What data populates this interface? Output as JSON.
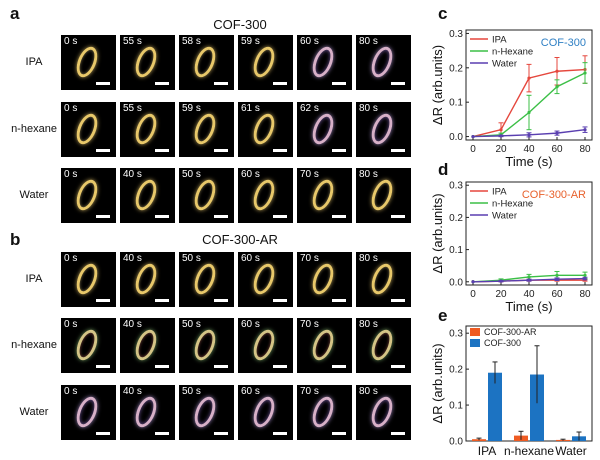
{
  "panels": {
    "a": {
      "letter": "a",
      "title": "COF-300",
      "rows": [
        {
          "label": "IPA",
          "times": [
            "0 s",
            "55 s",
            "58 s",
            "59 s",
            "60 s",
            "80 s"
          ],
          "styles": [
            "y",
            "y",
            "y",
            "y",
            "p",
            "p"
          ]
        },
        {
          "label": "n-hexane",
          "times": [
            "0 s",
            "55 s",
            "59 s",
            "61 s",
            "62 s",
            "80 s"
          ],
          "styles": [
            "y",
            "y",
            "y",
            "y",
            "p",
            "p"
          ]
        },
        {
          "label": "Water",
          "times": [
            "0 s",
            "40 s",
            "50 s",
            "60 s",
            "70 s",
            "80 s"
          ],
          "styles": [
            "y",
            "y",
            "y",
            "y",
            "y",
            "y"
          ]
        }
      ]
    },
    "b": {
      "letter": "b",
      "title": "COF-300-AR",
      "rows": [
        {
          "label": "IPA",
          "times": [
            "0 s",
            "40 s",
            "50 s",
            "60 s",
            "70 s",
            "80 s"
          ],
          "styles": [
            "y",
            "y",
            "y",
            "y",
            "y",
            "y"
          ]
        },
        {
          "label": "n-hexane",
          "times": [
            "0 s",
            "40 s",
            "50 s",
            "60 s",
            "70 s",
            "80 s"
          ],
          "styles": [
            "m",
            "m",
            "m",
            "m",
            "m",
            "m"
          ]
        },
        {
          "label": "Water",
          "times": [
            "0 s",
            "40 s",
            "50 s",
            "60 s",
            "70 s",
            "80 s"
          ],
          "styles": [
            "p",
            "p",
            "p",
            "p",
            "p",
            "p"
          ]
        }
      ]
    }
  },
  "chart_data": [
    {
      "id": "c",
      "letter": "c",
      "type": "line",
      "title": "COF-300",
      "xlabel": "Time (s)",
      "ylabel": "ΔR (arb.units)",
      "x": [
        0,
        20,
        40,
        60,
        80
      ],
      "xlim": [
        -5,
        85
      ],
      "ylim": [
        -0.01,
        0.31
      ],
      "xticks": [
        0,
        20,
        40,
        60,
        80
      ],
      "yticks": [
        0.0,
        0.1,
        0.2,
        0.3
      ],
      "ytick_labels": [
        "0.0",
        "0.1",
        "0.2",
        "0.3"
      ],
      "legend": "top-left",
      "title_color": "#2e7fc4",
      "series": [
        {
          "name": "IPA",
          "color": "#e5473d",
          "values": [
            0,
            0.02,
            0.17,
            0.19,
            0.195
          ],
          "errors": [
            0,
            0.02,
            0.04,
            0.04,
            0.04
          ]
        },
        {
          "name": "n-Hexane",
          "color": "#3bbf46",
          "values": [
            0,
            0.005,
            0.07,
            0.145,
            0.185
          ],
          "errors": [
            0,
            0.005,
            0.05,
            0.02,
            0.03
          ]
        },
        {
          "name": "Water",
          "color": "#5a3fb0",
          "values": [
            0,
            0.002,
            0.005,
            0.01,
            0.02
          ],
          "errors": [
            0,
            0.002,
            0.006,
            0.006,
            0.008
          ]
        }
      ]
    },
    {
      "id": "d",
      "letter": "d",
      "type": "line",
      "title": "COF-300-AR",
      "xlabel": "Time (s)",
      "ylabel": "ΔR (arb.units)",
      "x": [
        0,
        20,
        40,
        60,
        80
      ],
      "xlim": [
        -5,
        85
      ],
      "ylim": [
        -0.01,
        0.31
      ],
      "xticks": [
        0,
        20,
        40,
        60,
        80
      ],
      "yticks": [
        0.0,
        0.1,
        0.2,
        0.3
      ],
      "ytick_labels": [
        "0.0",
        "0.1",
        "0.2",
        "0.3"
      ],
      "legend": "top-left",
      "title_color": "#e8612c",
      "series": [
        {
          "name": "IPA",
          "color": "#e5473d",
          "values": [
            0,
            0.002,
            0.005,
            0.005,
            0.005
          ],
          "errors": [
            0,
            0.002,
            0.003,
            0.003,
            0.003
          ]
        },
        {
          "name": "n-Hexane",
          "color": "#3bbf46",
          "values": [
            0,
            0.005,
            0.015,
            0.02,
            0.02
          ],
          "errors": [
            0,
            0.004,
            0.008,
            0.012,
            0.01
          ]
        },
        {
          "name": "Water",
          "color": "#5a3fb0",
          "values": [
            0,
            0.002,
            0.005,
            0.008,
            0.01
          ],
          "errors": [
            0,
            0.002,
            0.003,
            0.004,
            0.004
          ]
        }
      ]
    },
    {
      "id": "e",
      "letter": "e",
      "type": "bar",
      "categories": [
        "IPA",
        "n-hexane",
        "Water"
      ],
      "xlabel": "",
      "ylabel": "ΔR (arb.units)",
      "ylim": [
        0,
        0.32
      ],
      "yticks": [
        0.0,
        0.1,
        0.2,
        0.3
      ],
      "ytick_labels": [
        "0.0",
        "0.1",
        "0.2",
        "0.3"
      ],
      "legend": "top-left",
      "series": [
        {
          "name": "COF-300-AR",
          "color": "#ef5b22",
          "values": [
            0.005,
            0.015,
            0.003
          ],
          "errors": [
            0.003,
            0.012,
            0.002
          ]
        },
        {
          "name": "COF-300",
          "color": "#1c73c2",
          "values": [
            0.19,
            0.185,
            0.013
          ],
          "errors": [
            0.03,
            0.08,
            0.012
          ]
        }
      ]
    }
  ]
}
